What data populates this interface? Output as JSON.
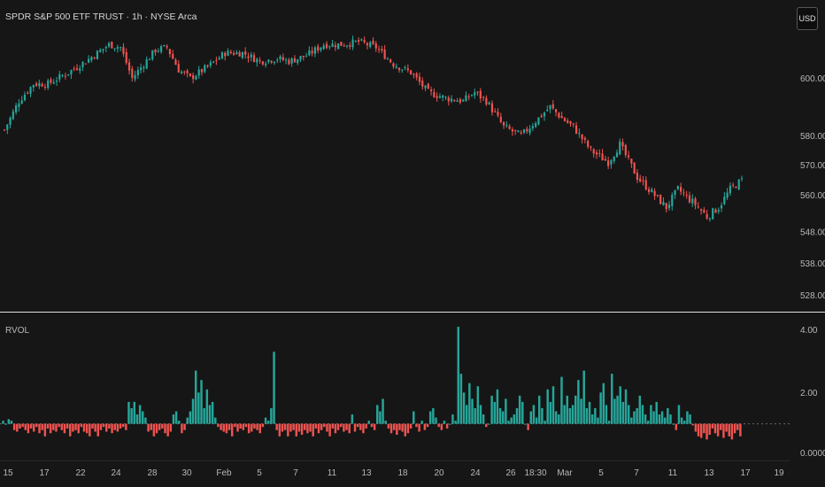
{
  "header": {
    "title": "SPDR S&P 500 ETF TRUST · 1h · NYSE Arca",
    "currency": "USD"
  },
  "colors": {
    "up": "#26a69a",
    "down": "#ef5350",
    "background": "#161616",
    "separator": "#e0e0e0"
  },
  "chart_data": [
    {
      "type": "candlestick",
      "price_axis_ticks": [
        "600.00",
        "580.00",
        "570.00",
        "560.00",
        "548.00",
        "538.00",
        "528.00"
      ],
      "price_axis_scale": "log",
      "date_axis_ticks": [
        "15",
        "17",
        "22",
        "24",
        "28",
        "30",
        "Feb",
        "5",
        "7",
        "11",
        "13",
        "18",
        "20",
        "24",
        "26",
        "18:30",
        "Mar",
        "5",
        "7",
        "11",
        "13",
        "17",
        "19"
      ],
      "close_path": [
        [
          0,
          582
        ],
        [
          5,
          592
        ],
        [
          10,
          598
        ],
        [
          15,
          598
        ],
        [
          22,
          602
        ],
        [
          28,
          606
        ],
        [
          32,
          609
        ],
        [
          36,
          612
        ],
        [
          40,
          611
        ],
        [
          44,
          600
        ],
        [
          48,
          605
        ],
        [
          52,
          610
        ],
        [
          56,
          611
        ],
        [
          60,
          603
        ],
        [
          64,
          600
        ],
        [
          70,
          604
        ],
        [
          76,
          609
        ],
        [
          82,
          609
        ],
        [
          88,
          606
        ],
        [
          94,
          607
        ],
        [
          98,
          606
        ],
        [
          104,
          608
        ],
        [
          110,
          612
        ],
        [
          116,
          612
        ],
        [
          122,
          613
        ],
        [
          128,
          611
        ],
        [
          134,
          605
        ],
        [
          140,
          602
        ],
        [
          146,
          595
        ],
        [
          152,
          593
        ],
        [
          158,
          592
        ],
        [
          162,
          595
        ],
        [
          166,
          592
        ],
        [
          172,
          583
        ],
        [
          178,
          580
        ],
        [
          184,
          586
        ],
        [
          188,
          590
        ],
        [
          192,
          586
        ],
        [
          196,
          583
        ],
        [
          202,
          575
        ],
        [
          208,
          571
        ],
        [
          212,
          577
        ],
        [
          218,
          566
        ],
        [
          224,
          560
        ],
        [
          228,
          556
        ],
        [
          232,
          562
        ],
        [
          238,
          557
        ],
        [
          242,
          553
        ],
        [
          246,
          556
        ],
        [
          250,
          562
        ],
        [
          254,
          565
        ]
      ],
      "close_path_units": [
        "bar index",
        "price"
      ],
      "price_range": [
        524,
        625
      ]
    },
    {
      "type": "bar",
      "title": "RVOL",
      "y_axis_ticks": [
        "4.00",
        "2.00",
        "0.0000"
      ],
      "baseline": 1.0,
      "ylim": [
        0,
        4.3
      ],
      "values": [
        1.1,
        1.0,
        1.15,
        1.1,
        0.8,
        0.75,
        0.85,
        0.9,
        0.8,
        0.7,
        0.85,
        0.75,
        0.9,
        0.7,
        0.8,
        0.6,
        0.85,
        0.7,
        0.8,
        0.75,
        0.9,
        0.8,
        0.7,
        0.85,
        0.6,
        0.75,
        0.8,
        0.7,
        0.9,
        0.75,
        0.7,
        0.6,
        0.85,
        0.75,
        0.6,
        0.8,
        0.9,
        0.75,
        0.85,
        0.7,
        0.8,
        0.75,
        0.85,
        0.9,
        0.8,
        1.7,
        1.5,
        1.7,
        1.3,
        1.6,
        1.4,
        1.2,
        0.75,
        0.8,
        0.6,
        0.7,
        0.8,
        0.85,
        0.7,
        0.6,
        0.75,
        1.3,
        1.4,
        1.1,
        0.7,
        0.8,
        1.2,
        1.4,
        1.8,
        2.7,
        2.0,
        2.4,
        1.5,
        2.1,
        1.6,
        1.7,
        1.2,
        0.9,
        0.8,
        0.75,
        0.7,
        0.8,
        0.6,
        0.9,
        0.75,
        0.85,
        0.8,
        0.9,
        0.7,
        0.75,
        0.85,
        0.8,
        0.7,
        0.9,
        1.2,
        1.1,
        1.5,
        3.3,
        0.8,
        0.6,
        0.75,
        0.8,
        0.6,
        0.75,
        0.8,
        0.6,
        0.75,
        0.65,
        0.8,
        0.7,
        0.75,
        0.6,
        0.85,
        0.7,
        0.8,
        0.9,
        0.75,
        0.6,
        0.85,
        0.7,
        0.8,
        0.9,
        0.75,
        0.8,
        0.7,
        1.3,
        0.75,
        0.9,
        0.8,
        0.7,
        0.85,
        1.1,
        0.9,
        0.8,
        1.6,
        1.4,
        1.8,
        1.1,
        0.85,
        0.7,
        0.8,
        0.65,
        0.8,
        0.75,
        0.6,
        0.7,
        0.85,
        1.4,
        0.9,
        0.75,
        1.1,
        0.8,
        0.9,
        1.4,
        1.5,
        1.2,
        0.9,
        0.8,
        1.1,
        0.85,
        1.0,
        1.3,
        1.1,
        4.1,
        2.6,
        2.0,
        1.6,
        2.3,
        1.8,
        1.5,
        2.2,
        1.6,
        1.3,
        0.9,
        1.0,
        1.9,
        1.7,
        2.1,
        1.5,
        1.4,
        1.8,
        1.1,
        1.2,
        1.3,
        1.5,
        1.9,
        1.7,
        1.0,
        0.8,
        1.4,
        1.6,
        1.2,
        1.9,
        1.5,
        1.1,
        2.1,
        1.7,
        2.2,
        1.4,
        1.3,
        2.5,
        1.6,
        1.9,
        1.5,
        1.6,
        1.9,
        2.4,
        1.8,
        2.7,
        1.5,
        1.7,
        1.3,
        1.5,
        1.2,
        2.0,
        2.3,
        1.6,
        1.1,
        2.6,
        1.8,
        1.9,
        2.2,
        1.7,
        2.1,
        1.6,
        1.2,
        1.4,
        1.5,
        1.9,
        1.6,
        1.3,
        1.1,
        1.6,
        1.4,
        1.7,
        1.3,
        1.4,
        1.2,
        1.5,
        1.3,
        1.0,
        0.8,
        1.6,
        1.2,
        1.1,
        1.4,
        1.3,
        0.95,
        0.75,
        0.6,
        0.55,
        0.7,
        0.5,
        0.65,
        0.85,
        0.7,
        0.6,
        0.8,
        0.55,
        0.75,
        0.6,
        0.5,
        0.7,
        0.8,
        0.6
      ]
    }
  ]
}
